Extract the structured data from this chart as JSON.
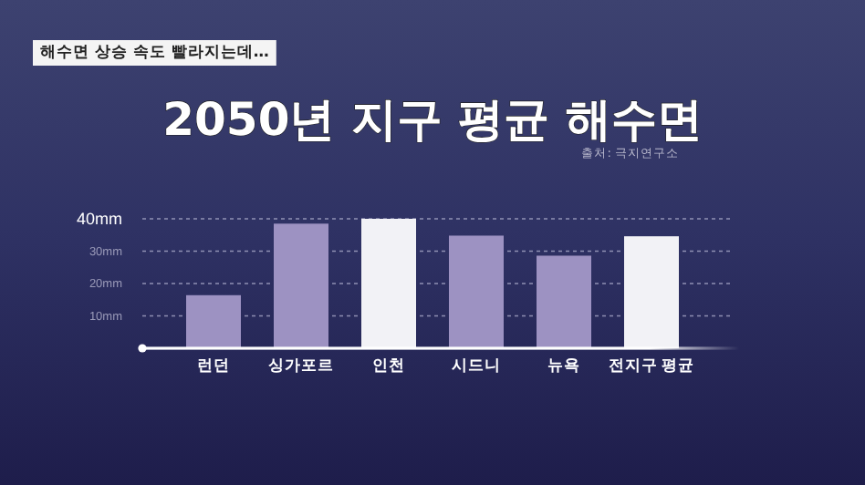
{
  "chart_data": {
    "type": "bar",
    "title": "2050년 지구 평균 해수면",
    "subtitle": "해수면 상승 속도 빨라지는데…",
    "annotations": [
      "출처: 극지연구소"
    ],
    "categories": [
      "런던",
      "싱가포르",
      "인천",
      "시드니",
      "뉴욕",
      "전지구 평균"
    ],
    "values": [
      16.4,
      38.5,
      40,
      34.8,
      28.6,
      34.6
    ],
    "colors": [
      "#9d92c2",
      "#9d92c2",
      "#f2f2f6",
      "#9d92c2",
      "#9d92c2",
      "#f2f2f6"
    ],
    "ylim": [
      0,
      40
    ],
    "yticks": [
      {
        "value": 10,
        "label": "10mm"
      },
      {
        "value": 20,
        "label": "20mm"
      },
      {
        "value": 30,
        "label": "30mm"
      },
      {
        "value": 40,
        "label": "40mm"
      }
    ],
    "grid": "y"
  }
}
